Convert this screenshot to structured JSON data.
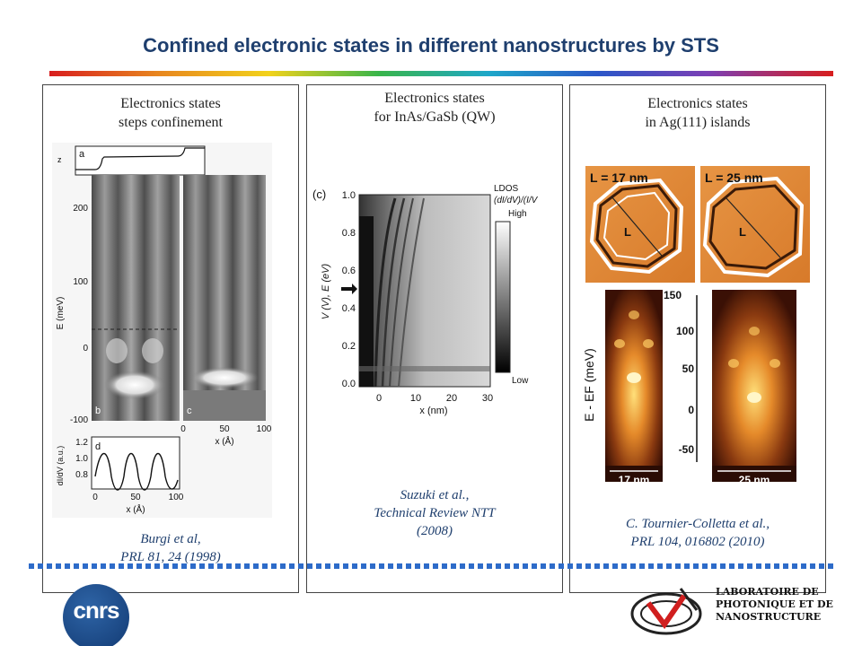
{
  "slide": {
    "title": "Confined electronic states in different nanostructures by STS"
  },
  "panels": [
    {
      "title_line1": "Electronics states",
      "title_line2": "steps confinement",
      "citation_line1": "Burgi et al,",
      "citation_line2": "PRL 81, 24 (1998)",
      "figure": {
        "panel_a_label": "a",
        "panel_b_label": "b",
        "panel_c_label": "c",
        "panel_d_label": "d",
        "z_label": "z",
        "y_axis_label": "E (meV)",
        "y_ticks": [
          "200",
          "100",
          "0",
          "-100"
        ],
        "x_ticks": [
          "0",
          "50",
          "100"
        ],
        "x_axis_label": "x (Å)",
        "d_y_label": "dI/dV (a.u.)",
        "d_y_ticks": [
          "1.2",
          "1.0",
          "0.8"
        ],
        "d_x_ticks": [
          "0",
          "50",
          "100"
        ],
        "d_x_label": "x (Å)"
      }
    },
    {
      "title_line1": "Electronics states",
      "title_line2": "for InAs/GaSb (QW)",
      "citation_line1": "Suzuki et al.,",
      "citation_line2": "Technical Review NTT",
      "citation_line3": "(2008)",
      "figure": {
        "panel_label": "(c)",
        "y_axis_label": "V (V), E (eV)",
        "y_ticks": [
          "1.0",
          "0.8",
          "0.6",
          "0.4",
          "0.2",
          "0.0"
        ],
        "x_ticks": [
          "0",
          "10",
          "20",
          "30"
        ],
        "x_axis_label": "x (nm)",
        "colorbar_title_line1": "LDOS",
        "colorbar_title_line2": "(dI/dV)/(I/V",
        "colorbar_high": "High",
        "colorbar_low": "Low"
      }
    },
    {
      "title_line1": "Electronics states",
      "title_line2": "in Ag(111) islands",
      "citation_line1": "C. Tournier-Colletta et al.,",
      "citation_line2": "PRL 104, 016802 (2010)",
      "figure": {
        "island1_label": "L = 17 nm",
        "island2_label": "L = 25 nm",
        "length_marker": "L",
        "y_axis_label": "E - EF (meV)",
        "y_ticks": [
          "150",
          "100",
          "50",
          "0",
          "-50"
        ],
        "scale1": "17 nm",
        "scale2": "25 nm"
      }
    }
  ],
  "footer": {
    "cnrs_logo_text": "cnrs",
    "lab_line1": "LABORATOIRE DE",
    "lab_line2": "PHOTONIQUE ET DE",
    "lab_line3": "NANOSTRUCTURE"
  },
  "colors": {
    "title": "#1f3f6e",
    "dotted_rule": "#2d6bc9",
    "citation": "#1f3f6e"
  }
}
